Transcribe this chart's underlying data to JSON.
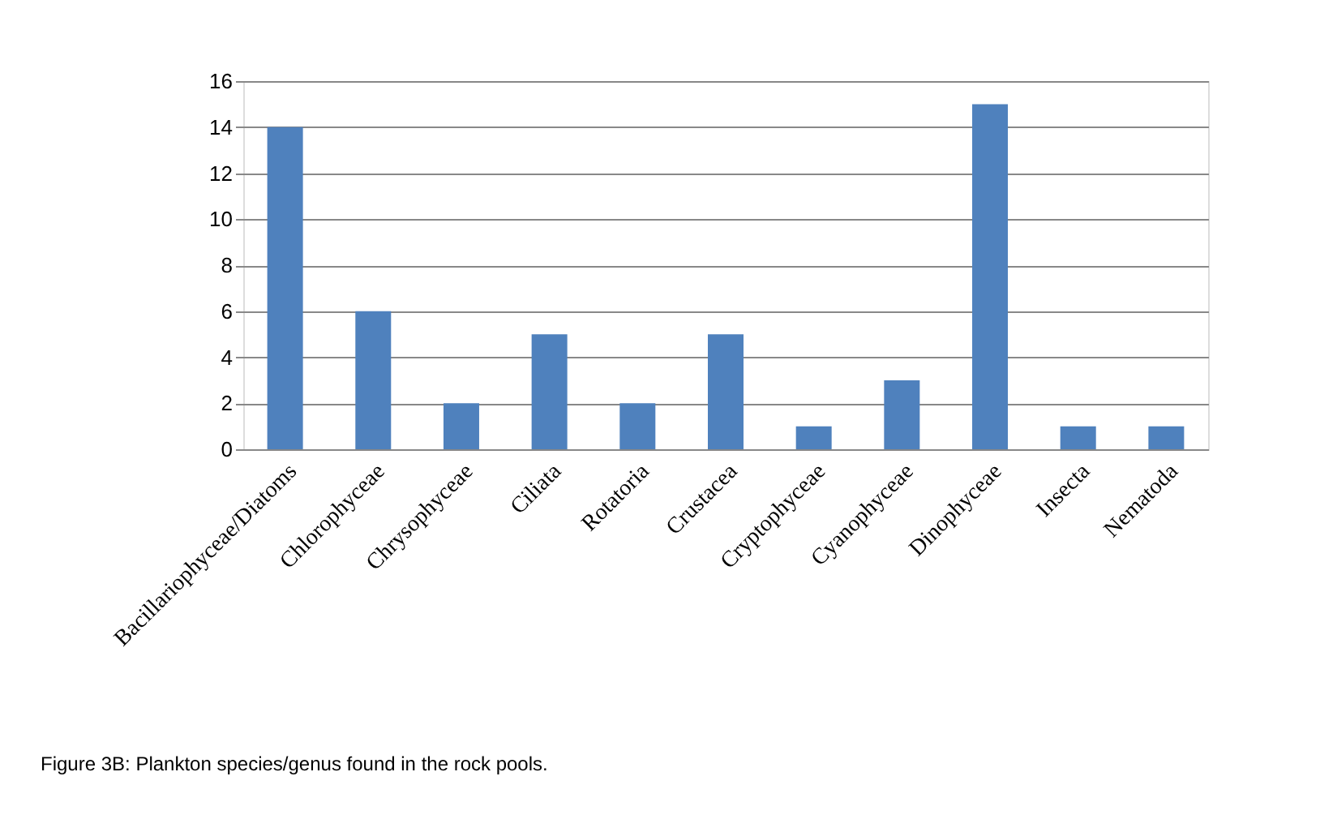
{
  "chart_data": {
    "type": "bar",
    "categories": [
      "Bacillariophyceae/Diatoms",
      "Chlorophyceae",
      "Chrysophyceae",
      "Ciliata",
      "Rotatoria",
      "Crustacea",
      "Cryptophyceae",
      "Cyanophyceae",
      "Dinophyceae",
      "Insecta",
      "Nematoda"
    ],
    "values": [
      14,
      6,
      2,
      5,
      2,
      5,
      1,
      3,
      15,
      1,
      1
    ],
    "color": "#4f81bd",
    "ylim": [
      0,
      16
    ],
    "yticks": [
      0,
      2,
      4,
      6,
      8,
      10,
      12,
      14,
      16
    ],
    "grid": "y",
    "annotations": [
      "Figure 3B: Plankton species/genus found in the rock pools."
    ]
  }
}
